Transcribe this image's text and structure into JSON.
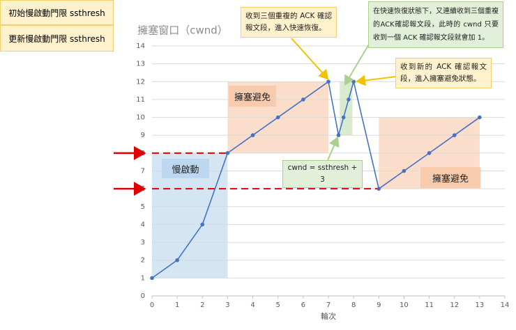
{
  "chart_data": {
    "type": "line",
    "title": "擁塞窗口（cwnd）",
    "x_label": "輪次",
    "x": [
      0,
      1,
      2,
      3,
      4,
      5,
      6,
      7,
      7.4,
      7.6,
      7.8,
      8,
      9,
      10,
      11,
      12,
      13
    ],
    "values": [
      1,
      2,
      4,
      8,
      9,
      10,
      11,
      12,
      9,
      10,
      11,
      12,
      6,
      7,
      8,
      9,
      10
    ],
    "color": "#4472c4",
    "xlim": [
      0,
      14
    ],
    "ylim": [
      0,
      14
    ],
    "xticks": [
      0,
      1,
      2,
      3,
      4,
      5,
      6,
      7,
      8,
      9,
      10,
      11,
      12,
      13,
      14
    ],
    "yticks": [
      0,
      1,
      2,
      3,
      4,
      5,
      6,
      7,
      8,
      9,
      10,
      11,
      12,
      13,
      14
    ],
    "grid": true,
    "regions": [
      {
        "x": [
          0,
          3
        ],
        "y": [
          1,
          8
        ],
        "color": "#bdd7ee",
        "label": "慢啟動"
      },
      {
        "x": [
          3,
          7
        ],
        "y": [
          8,
          12
        ],
        "color": "#f8cbad",
        "label": "擁塞避免"
      },
      {
        "x": [
          7.45,
          7.95
        ],
        "y": [
          9,
          12
        ],
        "color": "#c5e0b4"
      },
      {
        "x": [
          9,
          13
        ],
        "y": [
          6,
          10
        ],
        "color": "#f8cbad",
        "label": "擁塞避免"
      }
    ],
    "thresholds": [
      {
        "value": 8,
        "x_end": 3,
        "label": "初始慢啟動門限 ssthresh"
      },
      {
        "value": 6,
        "x_end": 9,
        "label": "更新慢啟動門限 ssthresh"
      }
    ],
    "annotations": [
      "收到三個重複的 ACK 確認報文段，進入快速恢復。",
      "在快速恢復狀態下，又連續收到三個重複的ACK確認報文段，此時的 cwnd 只要收到一個 ACK 確認報文段就會加 1。",
      "收到新的 ACK 確認報文段，進入擁塞避免狀態。",
      "cwnd = ssthresh + 3"
    ]
  }
}
